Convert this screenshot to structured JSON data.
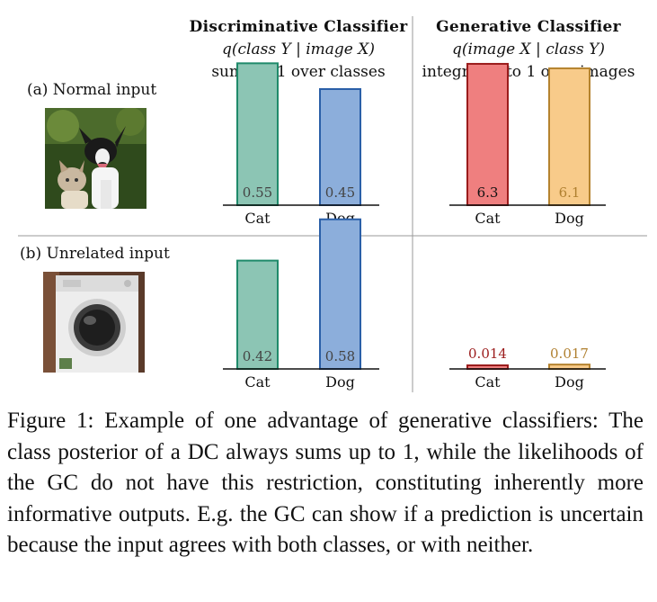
{
  "columns": [
    {
      "title": "Discriminative Classifier",
      "formula": "q(class Y | image X)",
      "note": "sums to 1 over classes"
    },
    {
      "title": "Generative Classifier",
      "formula": "q(image X | class Y)",
      "note": "integrates to 1 over images"
    }
  ],
  "rows": [
    {
      "label": "(a) Normal input",
      "image_icon": "cat-and-dog-photo"
    },
    {
      "label": "(b) Unrelated input",
      "image_icon": "washing-machine-photo"
    }
  ],
  "colors": {
    "dc_cat": "#8cc5b4",
    "dc_cat_edge": "#1f8a6a",
    "dc_dog": "#8caedb",
    "dc_dog_edge": "#2a5fa8",
    "gc_cat": "#ef7f7f",
    "gc_cat_edge": "#9b1c1c",
    "gc_dog": "#f8cb8a",
    "gc_dog_edge": "#b5832e"
  },
  "chart_data": [
    {
      "type": "bar",
      "panel": "a-discriminative",
      "categories": [
        "Cat",
        "Dog"
      ],
      "values": [
        0.55,
        0.45
      ],
      "labels": [
        "0.55",
        "0.45"
      ],
      "ylim": [
        0,
        0.6
      ]
    },
    {
      "type": "bar",
      "panel": "a-generative",
      "categories": [
        "Cat",
        "Dog"
      ],
      "values": [
        6.3,
        6.1
      ],
      "labels": [
        "6.3",
        "6.1"
      ],
      "ylim": [
        0,
        6.9
      ]
    },
    {
      "type": "bar",
      "panel": "b-discriminative",
      "categories": [
        "Cat",
        "Dog"
      ],
      "values": [
        0.42,
        0.58
      ],
      "labels": [
        "0.42",
        "0.58"
      ],
      "ylim": [
        0,
        0.6
      ]
    },
    {
      "type": "bar",
      "panel": "b-generative",
      "categories": [
        "Cat",
        "Dog"
      ],
      "values": [
        0.014,
        0.017
      ],
      "labels": [
        "0.014",
        "0.017"
      ],
      "ylim": [
        0,
        0.6
      ]
    }
  ],
  "caption": "Figure 1: Example of one advantage of generative classifiers: The class posterior of a DC always sums up to 1, while the likelihoods of the GC do not have this restriction, constituting inherently more informative outputs. E.g. the GC can show if a prediction is uncertain because the input agrees with both classes, or with neither."
}
